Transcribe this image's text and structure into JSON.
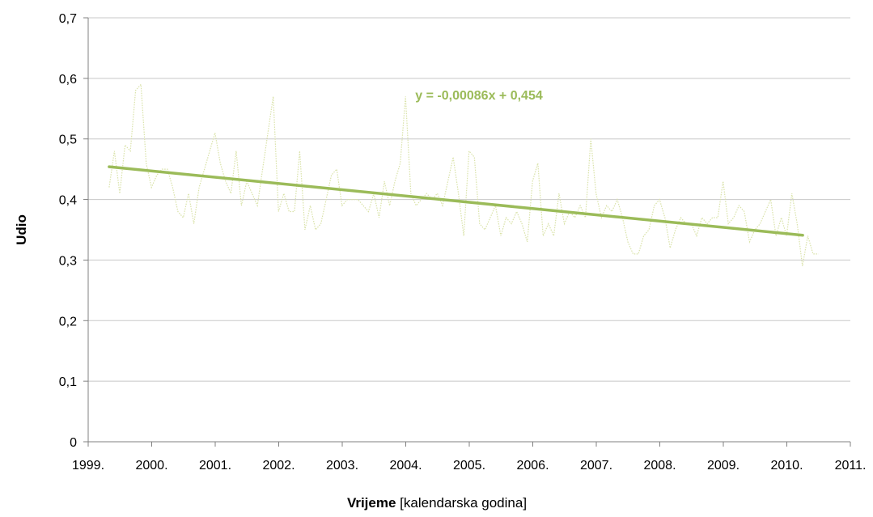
{
  "chart_data": {
    "type": "line",
    "ylabel": "Udio",
    "xlabel_bold": "Vrijeme",
    "xlabel_rest": " [kalendarska godina]",
    "x_ticks": [
      "1999.",
      "2000.",
      "2001.",
      "2002.",
      "2003.",
      "2004.",
      "2005.",
      "2006.",
      "2007.",
      "2008.",
      "2009.",
      "2010.",
      "2011."
    ],
    "y_ticks": [
      "0",
      "0,1",
      "0,2",
      "0,3",
      "0,4",
      "0,5",
      "0,6",
      "0,7"
    ],
    "xlim": [
      1999,
      2011
    ],
    "ylim": [
      0,
      0.7
    ],
    "grid": "horizontal",
    "series": [
      {
        "color": "#d9e2a8",
        "style": "dotted",
        "x_start": 1999.33,
        "step": 0.08333,
        "values": [
          0.42,
          0.48,
          0.41,
          0.49,
          0.48,
          0.58,
          0.59,
          0.46,
          0.42,
          0.44,
          0.45,
          0.45,
          0.42,
          0.38,
          0.37,
          0.41,
          0.36,
          0.42,
          0.45,
          0.48,
          0.51,
          0.46,
          0.43,
          0.41,
          0.48,
          0.39,
          0.43,
          0.41,
          0.39,
          0.45,
          0.51,
          0.57,
          0.38,
          0.41,
          0.38,
          0.38,
          0.48,
          0.35,
          0.39,
          0.35,
          0.36,
          0.4,
          0.44,
          0.45,
          0.39,
          0.4,
          0.4,
          0.4,
          0.39,
          0.38,
          0.41,
          0.37,
          0.43,
          0.39,
          0.43,
          0.46,
          0.57,
          0.41,
          0.39,
          0.4,
          0.41,
          0.4,
          0.41,
          0.39,
          0.43,
          0.47,
          0.41,
          0.34,
          0.48,
          0.47,
          0.36,
          0.35,
          0.37,
          0.39,
          0.34,
          0.37,
          0.36,
          0.38,
          0.36,
          0.33,
          0.43,
          0.46,
          0.34,
          0.36,
          0.34,
          0.41,
          0.36,
          0.38,
          0.37,
          0.39,
          0.37,
          0.5,
          0.41,
          0.37,
          0.39,
          0.38,
          0.4,
          0.37,
          0.33,
          0.31,
          0.31,
          0.34,
          0.35,
          0.39,
          0.4,
          0.37,
          0.32,
          0.35,
          0.37,
          0.36,
          0.36,
          0.34,
          0.37,
          0.36,
          0.37,
          0.37,
          0.43,
          0.36,
          0.37,
          0.39,
          0.38,
          0.33,
          0.35,
          0.36,
          0.38,
          0.4,
          0.34,
          0.37,
          0.34,
          0.41,
          0.36,
          0.29,
          0.34,
          0.31,
          0.31
        ]
      },
      {
        "color": "#9bbb59",
        "style": "solid",
        "x": [
          1999.33,
          2010.25
        ],
        "values": [
          0.454,
          0.341
        ]
      }
    ],
    "annotation": {
      "text": "y = -0,00086x + 0,454",
      "color": "#9bbb59",
      "x": 2004.15,
      "y": 0.565
    }
  }
}
